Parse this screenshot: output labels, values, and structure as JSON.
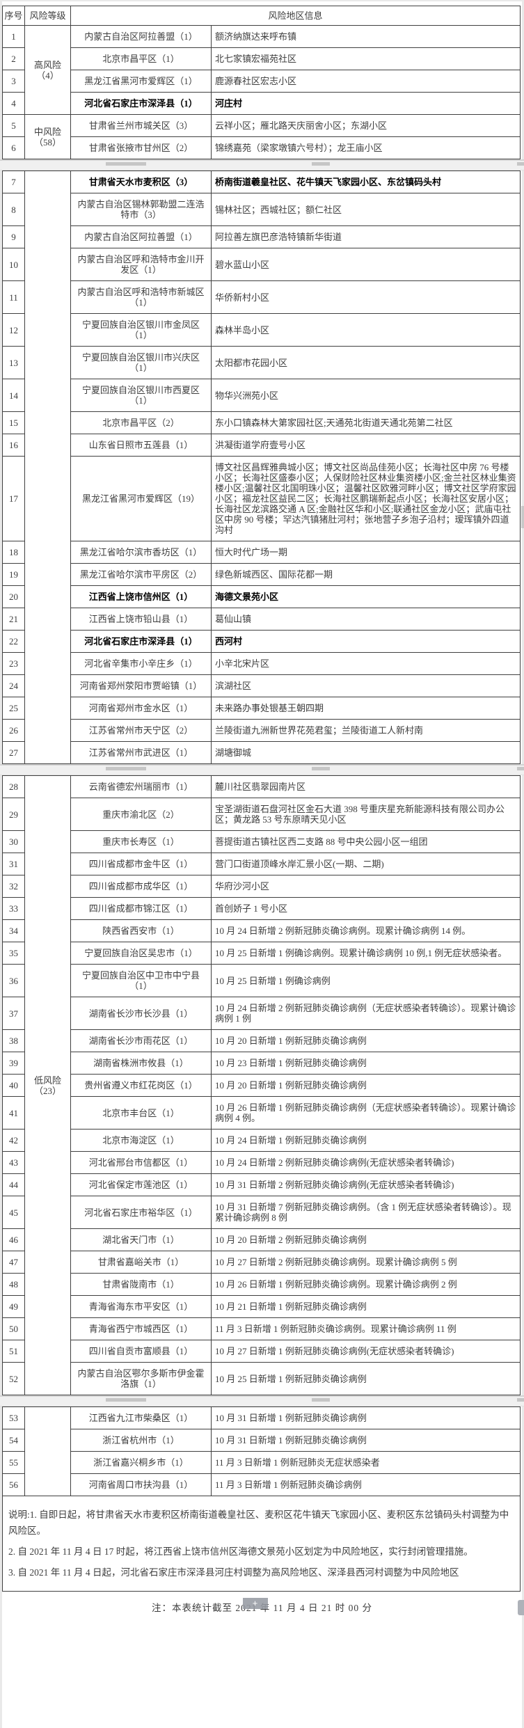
{
  "page": {
    "header": {
      "no": "序号",
      "level": "风险等级",
      "info": "风险地区信息"
    },
    "notes": [
      "说明:1. 自即日起，将甘肃省天水市麦积区桥南街道羲皇社区、麦积区花牛镇天飞家园小区、麦积区东岔镇码头村调整为中风险区。",
      "2. 自 2021 年 11 月 4 日 17 时起，将江西省上饶市信州区海德文景苑小区划定为中风险地区，实行封闭管理措施。",
      "3. 自 2021 年 11 月 4 日起，河北省石家庄市深泽县河庄村调整为高风险地区、深泽县西河村调整为中风险地区"
    ],
    "footer_note": "注：本表统计截至 2021 年 11 月 4 日 21 时 00 分",
    "plus_button": "+"
  },
  "risk_levels": [
    {
      "name": "高风险",
      "count": "（4）"
    },
    {
      "name": "中风险",
      "count": "（58）"
    },
    {
      "name": "低风险",
      "count": "（23）"
    }
  ],
  "rows": [
    {
      "no": "1",
      "region": "内蒙古自治区阿拉善盟（1）",
      "info": "额济纳旗达来呼布镇",
      "bold": false
    },
    {
      "no": "2",
      "region": "北京市昌平区（1）",
      "info": "北七家镇宏福苑社区",
      "bold": false
    },
    {
      "no": "3",
      "region": "黑龙江省黑河市爱辉区（1）",
      "info": "鹿源春社区宏志小区",
      "bold": false
    },
    {
      "no": "4",
      "region": "河北省石家庄市深泽县（1）",
      "info": "河庄村",
      "bold": true
    },
    {
      "no": "5",
      "region": "甘肃省兰州市城关区（3）",
      "info": "云祥小区；雁北路天庆丽舍小区；东湖小区",
      "bold": false
    },
    {
      "no": "6",
      "region": "甘肃省张掖市甘州区（2）",
      "info": "锦绣嘉苑（梁家墩镇六号村）；龙王庙小区",
      "bold": false
    },
    {
      "no": "7",
      "region": "甘肃省天水市麦积区（3）",
      "info": "桥南街道羲皇社区、花牛镇天飞家园小区、东岔镇码头村",
      "bold": true
    },
    {
      "no": "8",
      "region": "内蒙古自治区锡林郭勒盟二连浩特市（3）",
      "info": "锡林社区；西城社区；额仁社区",
      "bold": false
    },
    {
      "no": "9",
      "region": "内蒙古自治区阿拉善盟（1）",
      "info": "阿拉善左旗巴彦浩特镇新华街道",
      "bold": false
    },
    {
      "no": "10",
      "region": "内蒙古自治区呼和浩特市金川开发区（1）",
      "info": "碧水蓝山小区",
      "bold": false
    },
    {
      "no": "11",
      "region": "内蒙古自治区呼和浩特市新城区（1）",
      "info": "华侨新村小区",
      "bold": false
    },
    {
      "no": "12",
      "region": "宁夏回族自治区银川市金凤区（1）",
      "info": "森林半岛小区",
      "bold": false
    },
    {
      "no": "13",
      "region": "宁夏回族自治区银川市兴庆区（1）",
      "info": "太阳都市花园小区",
      "bold": false
    },
    {
      "no": "14",
      "region": "宁夏回族自治区银川市西夏区（1）",
      "info": "物华兴洲苑小区",
      "bold": false
    },
    {
      "no": "15",
      "region": "北京市昌平区（2）",
      "info": "东小口镇森林大第家园社区;天通苑北街道天通北苑第二社区",
      "bold": false
    },
    {
      "no": "16",
      "region": "山东省日照市五莲县（1）",
      "info": "洪凝街道学府壹号小区",
      "bold": false
    },
    {
      "no": "17",
      "region": "黑龙江省黑河市爱辉区（19）",
      "info": "博文社区昌辉雅典城小区；博文社区尚品佳苑小区；长海社区中房 76 号楼小区；长海社区盛泰小区；人保财险社区林业集资楼小区;金兰社区林业集资楼小区;温馨社区北国明珠小区；温馨社区欧雅河畔小区；博文社区学府家园小区；福龙社区益民二区；长海社区鹏瑞新起点小区；长海社区安居小区；长海社区龙滨路交通 A 区;金融社区华和小区;联通社区金龙小区；武庙屯社区中房 90 号楼；罕达汽镇猪肚河村；张地营子乡泡子沿村；瑷珲镇外四道沟村",
      "bold": false
    },
    {
      "no": "18",
      "region": "黑龙江省哈尔滨市香坊区（1）",
      "info": "恒大时代广场一期",
      "bold": false
    },
    {
      "no": "19",
      "region": "黑龙江省哈尔滨市平房区（2）",
      "info": "绿色新城西区、国际花都一期",
      "bold": false
    },
    {
      "no": "20",
      "region": "江西省上饶市信州区（1）",
      "info": "海德文景苑小区",
      "bold": true
    },
    {
      "no": "21",
      "region": "江西省上饶市铅山县（1）",
      "info": "葛仙山镇",
      "bold": false
    },
    {
      "no": "22",
      "region": "河北省石家庄市深泽县（1）",
      "info": "西河村",
      "bold": true
    },
    {
      "no": "23",
      "region": "河北省辛集市小辛庄乡（1）",
      "info": "小辛北宋片区",
      "bold": false
    },
    {
      "no": "24",
      "region": "河南省郑州荥阳市贾峪镇（1）",
      "info": "滨湖社区",
      "bold": false
    },
    {
      "no": "25",
      "region": "河南省郑州市金水区（1）",
      "info": "未来路办事处银基王朝四期",
      "bold": false
    },
    {
      "no": "26",
      "region": "江苏省常州市天宁区（2）",
      "info": "兰陵街道九洲新世界花苑君玺；兰陵街道工人新村南",
      "bold": false
    },
    {
      "no": "27",
      "region": "江苏省常州市武进区（1）",
      "info": "湖塘御城",
      "bold": false
    },
    {
      "no": "28",
      "region": "云南省德宏州瑞丽市（1）",
      "info": "麓川社区翡翠园南片区",
      "bold": false
    },
    {
      "no": "29",
      "region": "重庆市渝北区（2）",
      "info": "宝圣湖街道石盘河社区金石大道 398 号重庆星充新能源科技有限公司办公区；黄龙路 53 号东原晴天见小区",
      "bold": false
    },
    {
      "no": "30",
      "region": "重庆市长寿区（1）",
      "info": "菩提街道古镇社区西二支路 88 号中央公园小区一组团",
      "bold": false
    },
    {
      "no": "31",
      "region": "四川省成都市金牛区（1）",
      "info": "营门口街道顶峰水岸汇景小区(一期、二期)",
      "bold": false
    },
    {
      "no": "32",
      "region": "四川省成都市成华区（1）",
      "info": "华府沙河小区",
      "bold": false
    },
    {
      "no": "33",
      "region": "四川省成都市锦江区（1）",
      "info": "首创娇子 1 号小区",
      "bold": false
    },
    {
      "no": "34",
      "region": "陕西省西安市（1）",
      "info": "10 月 24 日新增 2 例新冠肺炎确诊病例。现累计确诊病例 14 例。",
      "bold": false
    },
    {
      "no": "35",
      "region": "宁夏回族自治区吴忠市（1）",
      "info": "10 月 25 日新增 1 例确诊病例。现累计确诊病例 10 例,1 例无症状感染者。",
      "bold": false
    },
    {
      "no": "36",
      "region": "宁夏回族自治区中卫市中宁县（1）",
      "info": "10 月 25 日新增 1 例确诊病例",
      "bold": false
    },
    {
      "no": "37",
      "region": "湖南省长沙市长沙县（1）",
      "info": "10 月 24 日新增 2 例新冠肺炎确诊病例（无症状感染者转确诊）。现累计确诊病例 1 例",
      "bold": false
    },
    {
      "no": "38",
      "region": "湖南省长沙市雨花区（1）",
      "info": "10 月 20 日新增 1 例新冠肺炎确诊病例",
      "bold": false
    },
    {
      "no": "39",
      "region": "湖南省株洲市攸县（1）",
      "info": "10 月 23 日新增 1 例新冠肺炎确诊病例",
      "bold": false
    },
    {
      "no": "40",
      "region": "贵州省遵义市红花岗区（1）",
      "info": "10 月 20 日新增 1 例新冠肺炎确诊病例",
      "bold": false
    },
    {
      "no": "41",
      "region": "北京市丰台区（1）",
      "info": "10 月 26 日新增 1 例新冠肺炎确诊病例（无症状感染者转确诊）。现累计确诊病例 4 例。",
      "bold": false
    },
    {
      "no": "42",
      "region": "北京市海淀区（1）",
      "info": "10 月 24 日新增 1 例新冠肺炎确诊病例",
      "bold": false
    },
    {
      "no": "43",
      "region": "河北省邢台市信都区（1）",
      "info": "10 月 24 日新增 2 例新冠肺炎确诊病例(无症状感染者转确诊)",
      "bold": false
    },
    {
      "no": "44",
      "region": "河北省保定市莲池区（1）",
      "info": "10 月 31 日新增 2 例新冠肺炎确诊病例(无症状感染者转确诊)",
      "bold": false
    },
    {
      "no": "45",
      "region": "河北省石家庄市裕华区（1）",
      "info": "10 月 31 日新增 7 例新冠肺炎确诊病例。（含 1 例无症状感染者转确诊）。现累计确诊病例 8 例",
      "bold": false
    },
    {
      "no": "46",
      "region": "湖北省天门市（1）",
      "info": "10 月 20 日新增 2 例新冠肺炎确诊病例",
      "bold": false
    },
    {
      "no": "47",
      "region": "甘肃省嘉峪关市（1）",
      "info": "10 月 27 日新增 2 例新冠肺炎确诊病例。现累计确诊病例 5 例",
      "bold": false
    },
    {
      "no": "48",
      "region": "甘肃省陇南市（1）",
      "info": "10 月 26 日新增 1 例新冠肺炎确诊病例。现累计确诊病例 2 例",
      "bold": false
    },
    {
      "no": "49",
      "region": "青海省海东市平安区（1）",
      "info": "10 月 21 日新增 1 例新冠肺炎确诊病例",
      "bold": false
    },
    {
      "no": "50",
      "region": "青海省西宁市城西区（1）",
      "info": "11 月 3 日新增 1 例新冠肺炎确诊病例。现累计确诊病例 11 例",
      "bold": false
    },
    {
      "no": "51",
      "region": "四川省自贡市富顺县（1）",
      "info": "10 月 27 日新增 1 例新冠肺炎确诊病例(无症状感染者转确诊)",
      "bold": false
    },
    {
      "no": "52",
      "region": "内蒙古自治区鄂尔多斯市伊金霍洛旗（1）",
      "info": "10 月 25 日新增 1 例新冠肺炎确诊病例",
      "bold": false
    },
    {
      "no": "53",
      "region": "江西省九江市柴桑区（1）",
      "info": "10 月 31 日新增 1 例新冠肺炎确诊病例",
      "bold": false
    },
    {
      "no": "54",
      "region": "浙江省杭州市（1）",
      "info": "10 月 31 日新增 1 例新冠肺炎确诊病例",
      "bold": false
    },
    {
      "no": "55",
      "region": "浙江省嘉兴桐乡市（1）",
      "info": "11 月 3 日新增 1 例新冠肺炎无症状感染者",
      "bold": false
    },
    {
      "no": "56",
      "region": "河南省周口市扶沟县（1）",
      "info": "11 月 3 日新增 1 例新冠肺炎确诊病例",
      "bold": false
    }
  ],
  "layout_sections": [
    {
      "rows": [
        1,
        6
      ],
      "groups": [
        {
          "level": 0,
          "span": [
            1,
            4
          ]
        },
        {
          "level": 1,
          "span": [
            5,
            6
          ]
        }
      ]
    },
    {
      "rows": [
        7,
        27
      ],
      "groups": [
        {
          "level": null,
          "span": [
            7,
            27
          ]
        }
      ]
    },
    {
      "rows": [
        28,
        52
      ],
      "groups": [
        {
          "level": 2,
          "span": [
            28,
            52
          ]
        }
      ]
    },
    {
      "rows": [
        53,
        56
      ],
      "groups": [
        {
          "level": null,
          "span": [
            53,
            56
          ]
        }
      ]
    }
  ]
}
